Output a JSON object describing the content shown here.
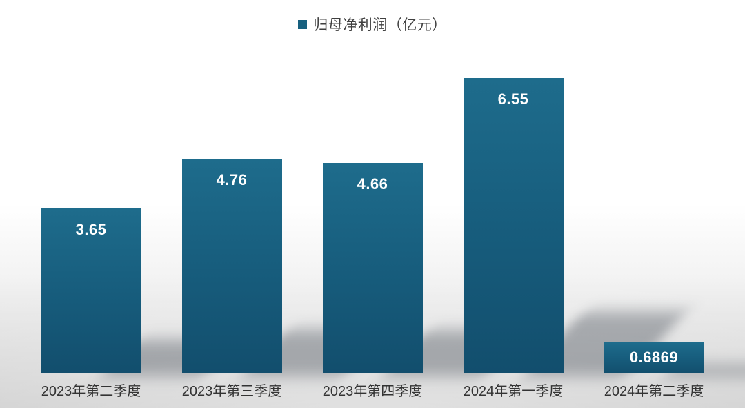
{
  "chart_data": {
    "type": "bar",
    "title": "归母净利润（亿元）",
    "legend_label": "归母净利润（亿元）",
    "legend_position": "top-center",
    "grid": false,
    "categories": [
      "2023年第二季度",
      "2023年第三季度",
      "2023年第四季度",
      "2024年第一季度",
      "2024年第二季度"
    ],
    "values": [
      3.65,
      4.76,
      4.66,
      6.55,
      0.6869
    ],
    "value_labels": [
      "3.65",
      "4.76",
      "4.66",
      "6.55",
      "0.6869"
    ],
    "ylim": [
      0,
      6.55
    ],
    "colors": {
      "bar_top": "#1e6c8c",
      "bar_mid": "#175d7d",
      "bar_bottom": "#124e6d",
      "legend_marker": "#17607f",
      "legend_text": "#3f3f3f",
      "value_label": "#ffffff",
      "axis_label": "#333333",
      "shadow": "rgba(45,55,65,0.35)",
      "background_top": "#ffffff",
      "background_bottom": "#cbcbcb"
    }
  }
}
